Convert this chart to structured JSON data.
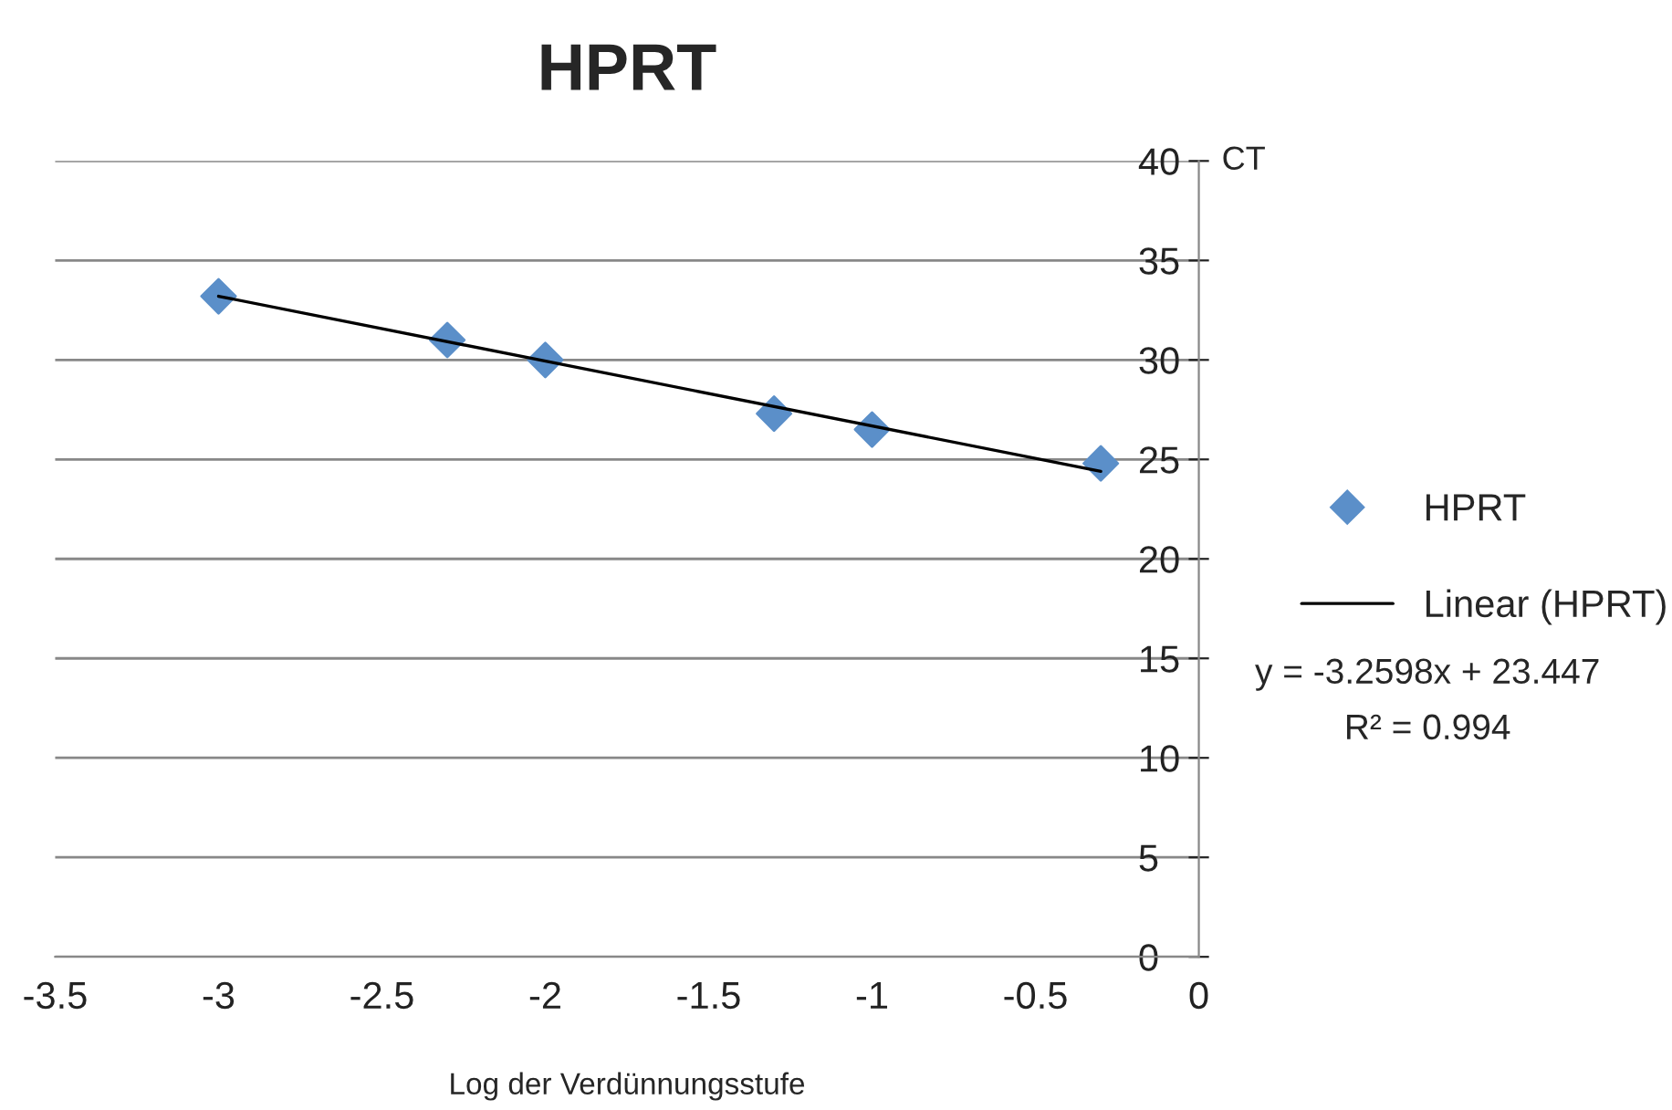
{
  "chart_data": {
    "type": "scatter",
    "title": "HPRT",
    "xlabel": "Log der Verdünnungsstufe",
    "ylabel": "CT",
    "x": [
      -3,
      -2.3,
      -2,
      -1.3,
      -1,
      -0.3
    ],
    "series": [
      {
        "name": "HPRT",
        "color": "#5b8fc9",
        "marker": "diamond",
        "values": [
          33.2,
          31.0,
          30.0,
          27.3,
          26.5,
          24.8
        ]
      },
      {
        "name": "Linear (HPRT)",
        "type": "line",
        "color": "#000000",
        "line_style": "solid",
        "marker": "none",
        "x": [
          -3,
          -0.3
        ],
        "values": [
          33.2,
          24.4
        ]
      }
    ],
    "xlim": [
      -3.5,
      0
    ],
    "xticks": [
      -3.5,
      -3,
      -2.5,
      -2,
      -1.5,
      -1,
      -0.5,
      0
    ],
    "ylim": [
      0,
      40
    ],
    "yticks": [
      0,
      5,
      10,
      15,
      20,
      25,
      30,
      35,
      40
    ],
    "grid": "y",
    "legend": "right",
    "annotations": [
      "y = -3.2598x + 23.447",
      "R² = 0.994"
    ]
  }
}
